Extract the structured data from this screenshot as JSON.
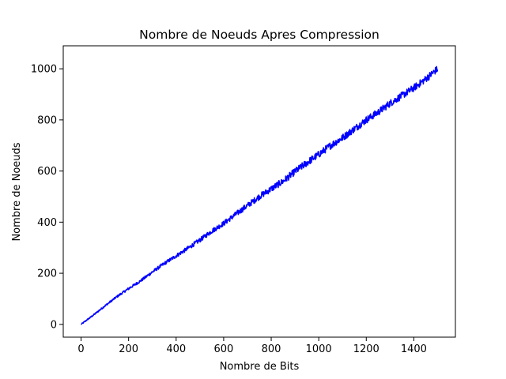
{
  "chart_data": {
    "type": "line",
    "title": "Nombre de Noeuds Apres Compression",
    "xlabel": "Nombre de Bits",
    "ylabel": "Nombre de Noeuds",
    "xlim": [
      -75,
      1575
    ],
    "ylim": [
      -50,
      1090
    ],
    "xticks": [
      0,
      200,
      400,
      600,
      800,
      1000,
      1200,
      1400
    ],
    "yticks": [
      0,
      200,
      400,
      600,
      800,
      1000
    ],
    "grid": false,
    "legend": "none",
    "series": [
      {
        "color": "#0000ff",
        "x": [
          0,
          50,
          100,
          150,
          200,
          250,
          300,
          350,
          400,
          450,
          500,
          550,
          600,
          650,
          700,
          750,
          800,
          850,
          900,
          950,
          1000,
          1050,
          1100,
          1150,
          1200,
          1250,
          1300,
          1350,
          1400,
          1450,
          1500
        ],
        "y": [
          0,
          35,
          72,
          108,
          140,
          170,
          205,
          238,
          268,
          298,
          330,
          365,
          395,
          430,
          465,
          500,
          530,
          560,
          598,
          632,
          665,
          700,
          730,
          765,
          800,
          830,
          865,
          895,
          925,
          960,
          1000
        ],
        "noise": 14
      }
    ]
  }
}
